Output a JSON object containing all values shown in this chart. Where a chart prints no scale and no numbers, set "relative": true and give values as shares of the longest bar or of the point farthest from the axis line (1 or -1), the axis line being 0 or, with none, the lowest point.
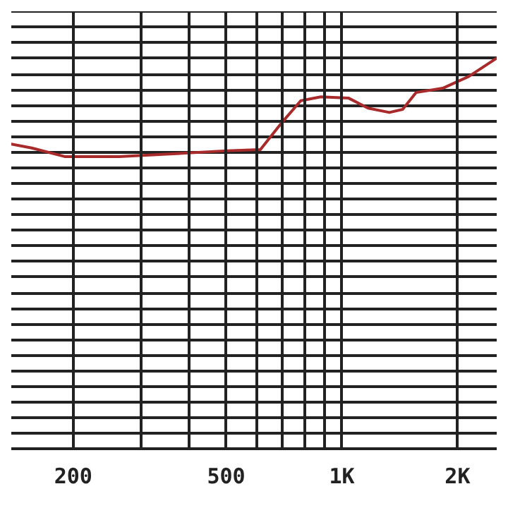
{
  "chart_data": {
    "type": "line",
    "relative": true,
    "log": "x",
    "grid": true,
    "marker": "none",
    "line_style": "solid",
    "x": [
      138,
      156,
      190,
      263,
      364,
      503,
      614,
      694,
      782,
      882,
      1040,
      1170,
      1330,
      1440,
      1560,
      1830,
      2140,
      2530
    ],
    "xlim": [
      138,
      2530
    ],
    "xticks": [
      200,
      500,
      {
        "value": 1000,
        "label": "1K"
      },
      {
        "value": 2000,
        "label": "2K"
      }
    ],
    "series": [
      {
        "color": "#a82a2a",
        "values": [
          0.78,
          0.77,
          0.748,
          0.748,
          0.755,
          0.763,
          0.766,
          0.832,
          0.891,
          0.901,
          0.898,
          0.872,
          0.861,
          0.869,
          0.912,
          0.923,
          0.953,
          1
        ]
      }
    ]
  }
}
